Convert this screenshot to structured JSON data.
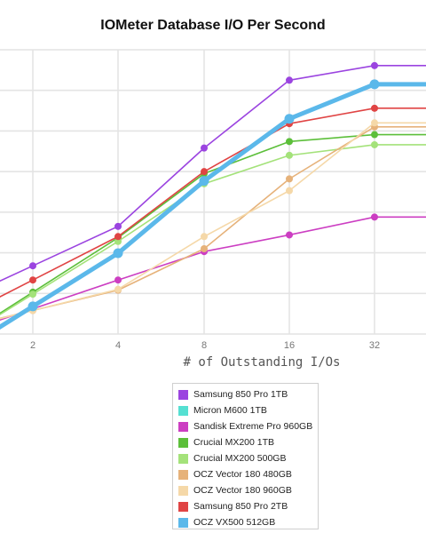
{
  "chart_data": {
    "type": "line",
    "title": "IOMeter Database I/O Per Second",
    "xlabel": "# of Outstanding I/Os",
    "categories": [
      "2",
      "4",
      "8",
      "16",
      "32"
    ],
    "grid": true,
    "legend_placement": "bottom",
    "series": [
      {
        "name": "Samsung 850 Pro 1TB",
        "color": "#9b44e0",
        "width": 1.6,
        "values": [
          26800,
          36500,
          55800,
          72500,
          76100
        ]
      },
      {
        "name": "Micron M600 1TB",
        "color": "#55e0d2",
        "width": 1.6,
        "values": [
          null,
          null,
          null,
          null,
          null
        ]
      },
      {
        "name": "Sandisk Extreme Pro 960GB",
        "color": "#cc3ec2",
        "width": 1.6,
        "values": [
          16200,
          23300,
          30300,
          34400,
          38800
        ]
      },
      {
        "name": "Crucial MX200 1TB",
        "color": "#5cbf3a",
        "width": 1.6,
        "values": [
          20300,
          33700,
          49500,
          57400,
          59100
        ]
      },
      {
        "name": "Crucial MX200 500GB",
        "color": "#a4e27a",
        "width": 1.6,
        "values": [
          19800,
          32800,
          47000,
          54000,
          56600
        ]
      },
      {
        "name": "OCZ Vector 180 480GB",
        "color": "#e6b27a",
        "width": 1.6,
        "values": [
          15800,
          20800,
          31000,
          48200,
          61000
        ]
      },
      {
        "name": "OCZ Vector 180 960GB",
        "color": "#f5d8a8",
        "width": 1.6,
        "values": [
          15800,
          21000,
          34000,
          45300,
          62000
        ]
      },
      {
        "name": "Samsung 850 Pro 2TB",
        "color": "#e04444",
        "width": 1.6,
        "values": [
          23300,
          34000,
          50000,
          61800,
          65600
        ]
      },
      {
        "name": "OCZ VX500 512GB",
        "color": "#5bb8ea",
        "width": 5,
        "values": [
          16800,
          29900,
          47700,
          63000,
          71500
        ]
      }
    ]
  }
}
